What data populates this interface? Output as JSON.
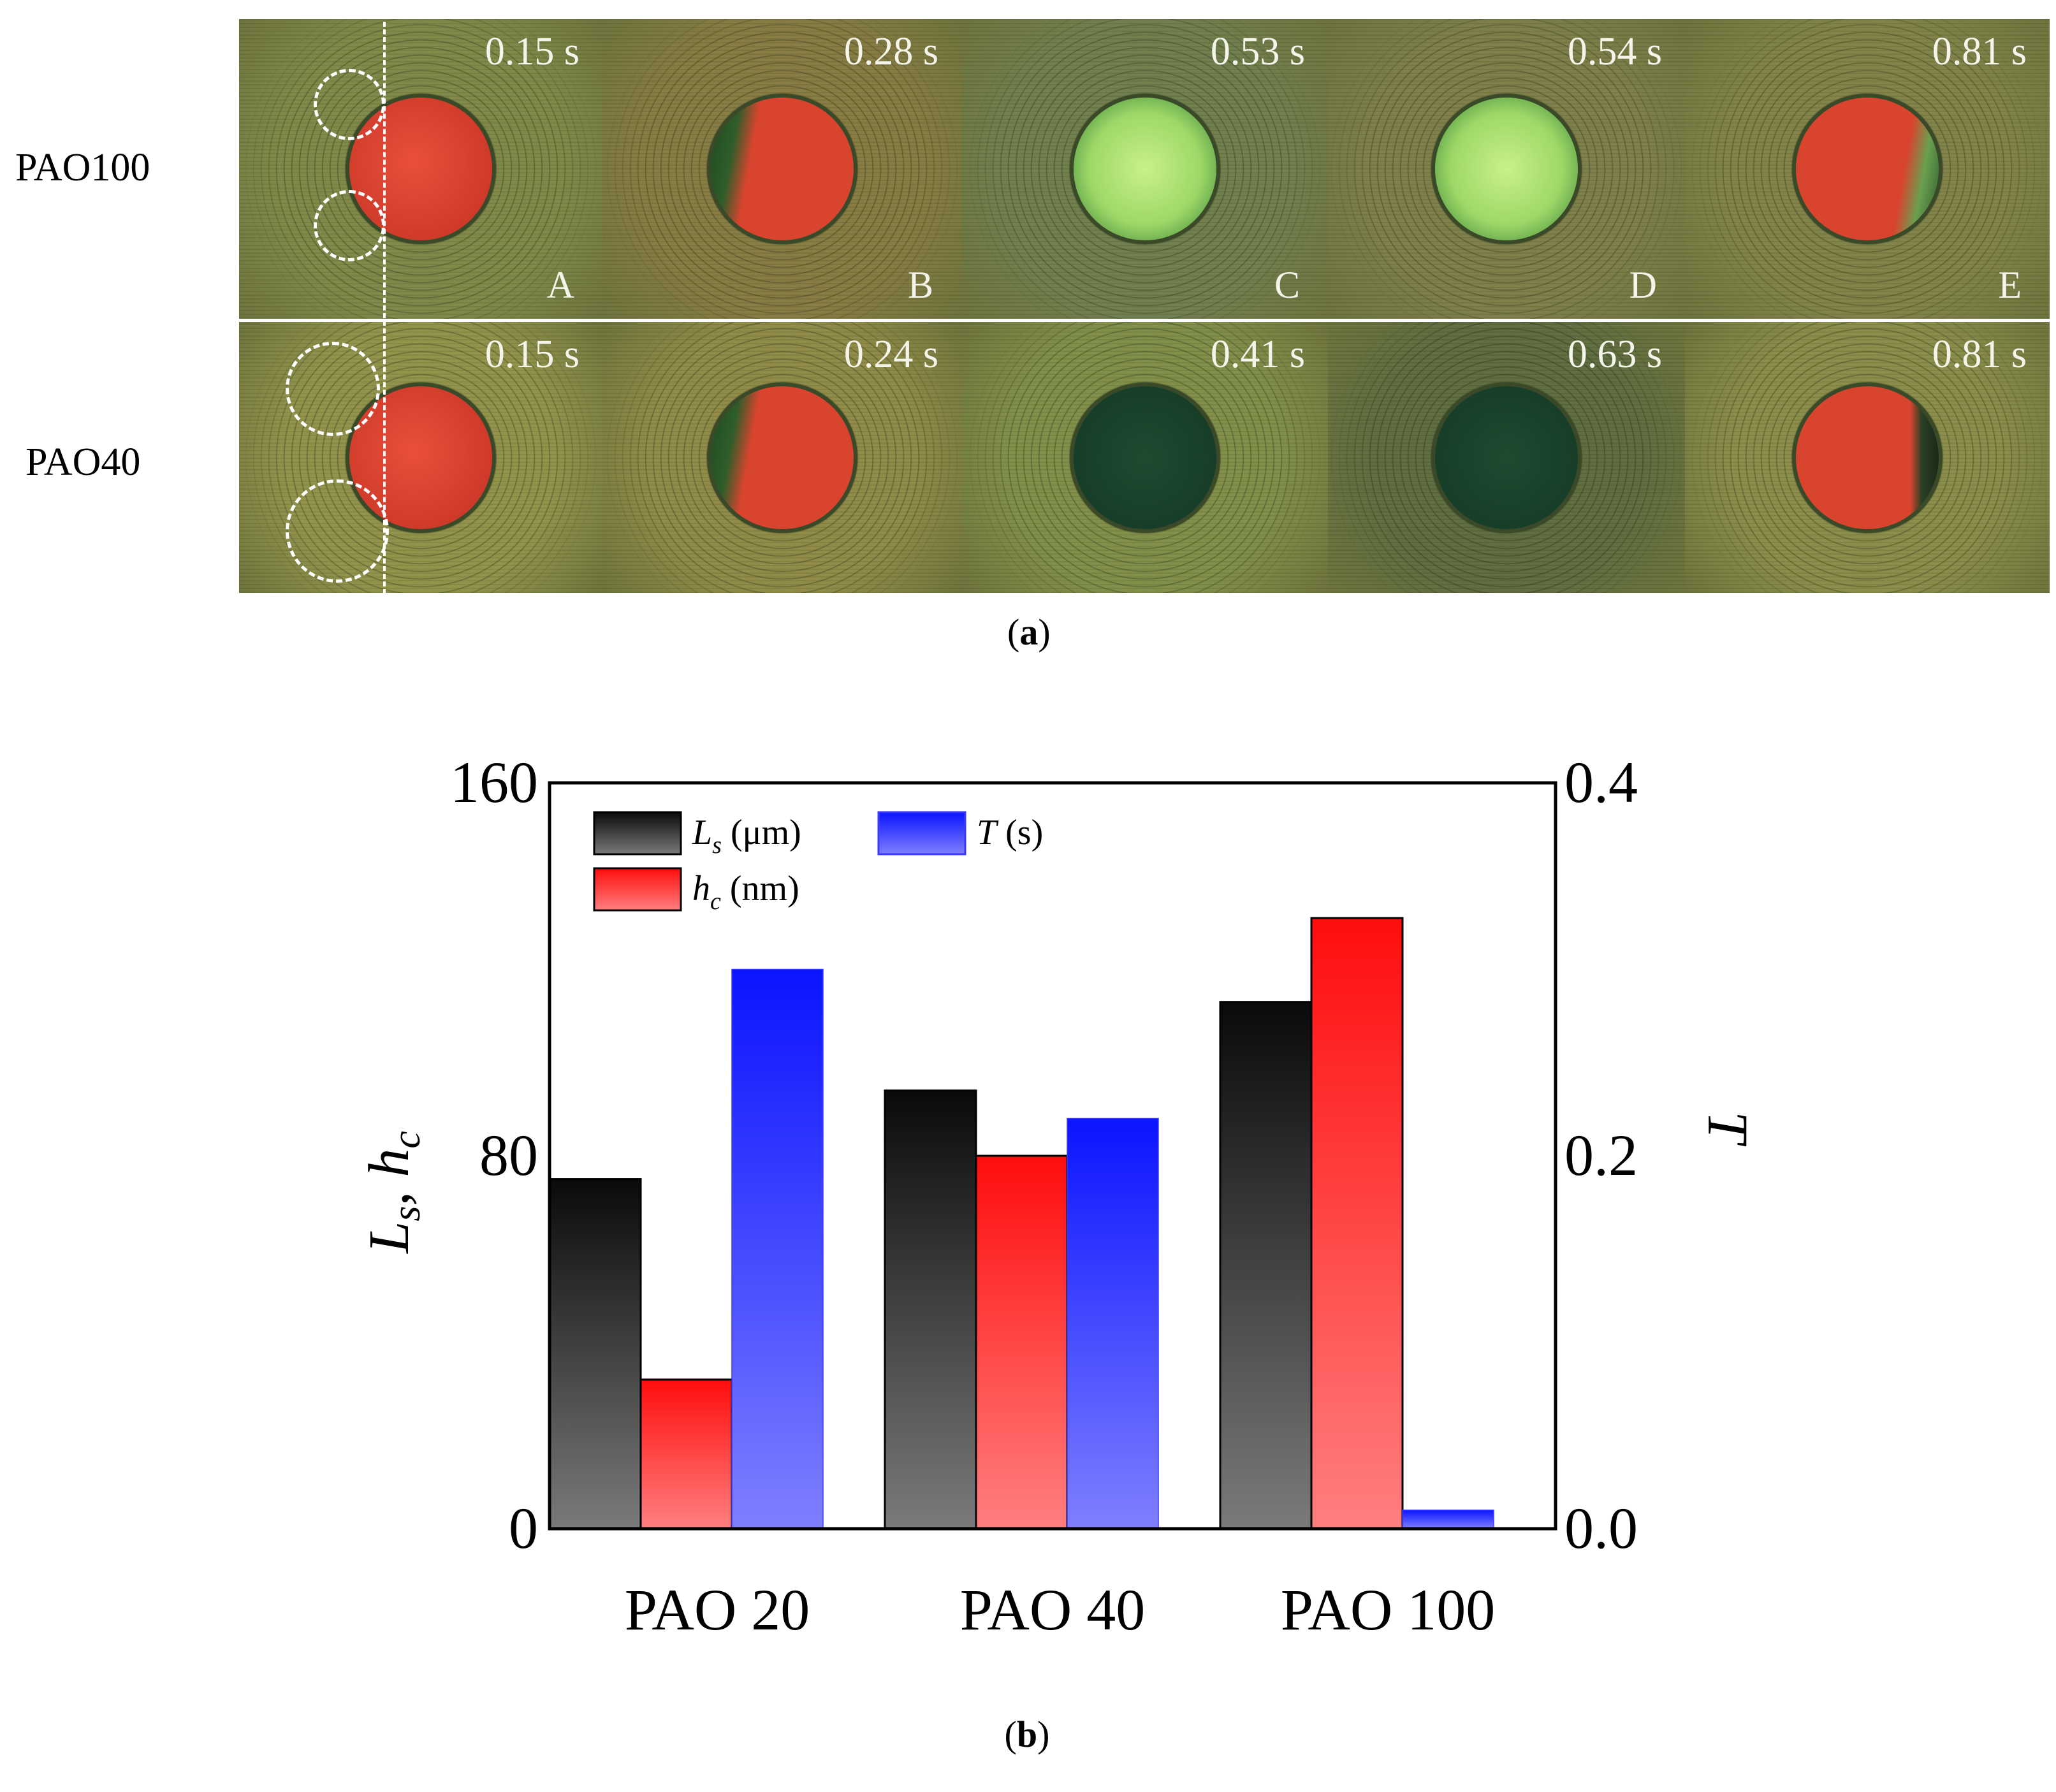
{
  "panel_a": {
    "rows": [
      {
        "label": "PAO100",
        "frames": [
          {
            "time": "0.15 s",
            "letter": "A",
            "state": "red"
          },
          {
            "time": "0.28 s",
            "letter": "B",
            "state": "red-notch"
          },
          {
            "time": "0.53 s",
            "letter": "C",
            "state": "green"
          },
          {
            "time": "0.54 s",
            "letter": "D",
            "state": "green"
          },
          {
            "time": "0.81 s",
            "letter": "E",
            "state": "red-notch-right"
          }
        ]
      },
      {
        "label": "PAO40",
        "frames": [
          {
            "time": "0.15 s",
            "letter": "",
            "state": "red"
          },
          {
            "time": "0.24 s",
            "letter": "",
            "state": "red-notch"
          },
          {
            "time": "0.41 s",
            "letter": "",
            "state": "dark"
          },
          {
            "time": "0.63 s",
            "letter": "",
            "state": "dark"
          },
          {
            "time": "0.81 s",
            "letter": "",
            "state": "red-edge-right"
          }
        ]
      }
    ],
    "caption": "(a)"
  },
  "panel_b": {
    "caption": "(b)"
  },
  "chart_data": {
    "type": "bar",
    "categories": [
      "PAO 20",
      "PAO 40",
      "PAO 100"
    ],
    "series": [
      {
        "name": "L_s (μm)",
        "legend_main": "L",
        "legend_sub": "s",
        "legend_unit": " (μm)",
        "axis": "left",
        "values": [
          75,
          94,
          113
        ],
        "color_top": "#0a0a0a",
        "color_bottom": "#7a7a7a"
      },
      {
        "name": "h_c (nm)",
        "legend_main": "h",
        "legend_sub": "c",
        "legend_unit": " (nm)",
        "axis": "left",
        "values": [
          32,
          80,
          131
        ],
        "color_top": "#ff0d0d",
        "color_bottom": "#ff7f7f"
      },
      {
        "name": "T (s)",
        "legend_main": "T",
        "legend_sub": "",
        "legend_unit": " (s)",
        "axis": "right",
        "values": [
          0.3,
          0.22,
          0.01
        ],
        "color_top": "#0a14ff",
        "color_bottom": "#7f7fff"
      }
    ],
    "ylabel_left_main": "L",
    "ylabel_left_sub": "s",
    "ylabel_left_mid": ", h",
    "ylabel_left_sub2": "c",
    "ylabel_right": "T",
    "ylim_left": [
      0,
      160
    ],
    "yticks_left": [
      "0",
      "80",
      "160"
    ],
    "ylim_right": [
      0,
      0.4
    ],
    "yticks_right": [
      "0.0",
      "0.2",
      "0.4"
    ],
    "legend_position": "top-left",
    "grid": false
  }
}
